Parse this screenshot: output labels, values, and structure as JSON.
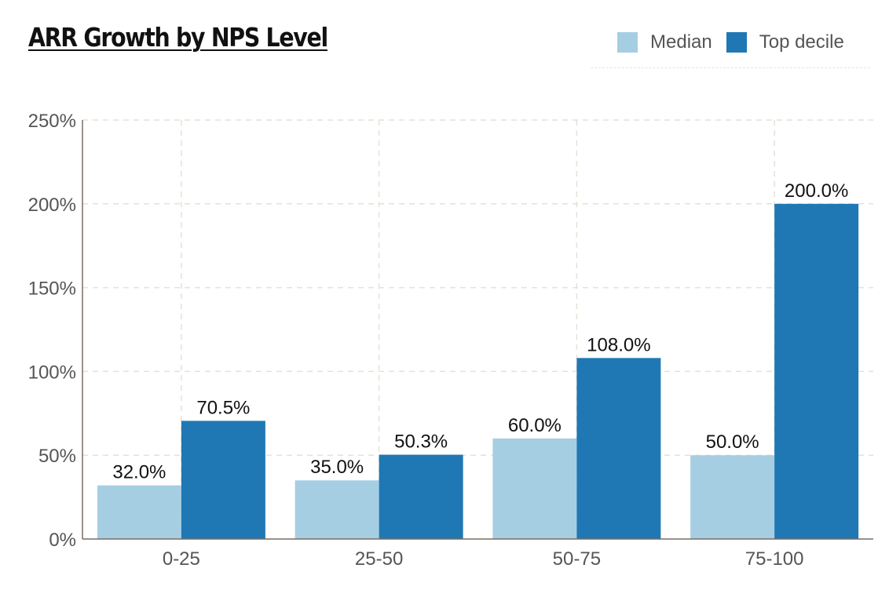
{
  "colors": {
    "median": "#a6cee3",
    "top_decile": "#1f78b4",
    "grid": "#e6e1d6",
    "axis": "#7a6e60"
  },
  "chart_data": {
    "type": "bar",
    "title": "ARR Growth by NPS Level",
    "xlabel": "",
    "ylabel": "",
    "categories": [
      "0-25",
      "25-50",
      "50-75",
      "75-100"
    ],
    "series": [
      {
        "name": "Median",
        "values": [
          32.0,
          35.0,
          60.0,
          50.0
        ],
        "labels": [
          "32.0%",
          "35.0%",
          "60.0%",
          "50.0%"
        ]
      },
      {
        "name": "Top decile",
        "values": [
          70.5,
          50.3,
          108.0,
          200.0
        ],
        "labels": [
          "70.5%",
          "50.3%",
          "108.0%",
          "200.0%"
        ]
      }
    ],
    "ylim": [
      0,
      250
    ],
    "yticks": [
      0,
      50,
      100,
      150,
      200,
      250
    ],
    "ytick_labels": [
      "0%",
      "50%",
      "100%",
      "150%",
      "200%",
      "250%"
    ],
    "grid": true,
    "legend_position": "top-right"
  }
}
